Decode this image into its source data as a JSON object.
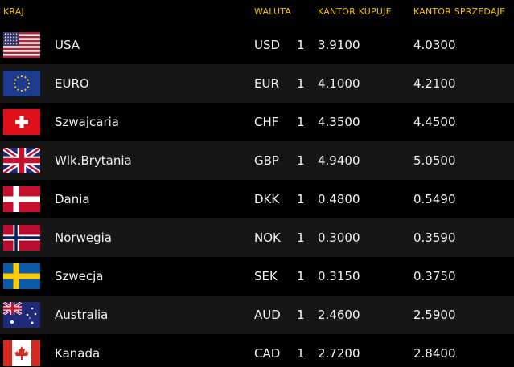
{
  "table": {
    "header": [
      "KRAJ",
      "WALUTA",
      "KANTOR KUPUJE",
      "KANTOR SPRZEDAJE"
    ],
    "rows": [
      [
        "USA",
        "USD",
        "1",
        "3.9100",
        "4.0300"
      ],
      [
        "EURO",
        "EUR",
        "1",
        "4.1000",
        "4.2100"
      ],
      [
        "Szwajcaria",
        "CHF",
        "1",
        "4.3500",
        "4.4500"
      ],
      [
        "Wlk.Brytania",
        "GBP",
        "1",
        "4.9400",
        "5.0500"
      ],
      [
        "Dania",
        "DKK",
        "1",
        "0.4800",
        "0.5490"
      ],
      [
        "Norwegia",
        "NOK",
        "1",
        "0.3000",
        "0.3590"
      ],
      [
        "Szwecja",
        "SEK",
        "1",
        "0.3150",
        "0.3750"
      ],
      [
        "Australia",
        "AUD",
        "1",
        "2.4600",
        "2.5900"
      ],
      [
        "Kanada",
        "CAD",
        "1",
        "2.7200",
        "2.8400"
      ]
    ]
  }
}
